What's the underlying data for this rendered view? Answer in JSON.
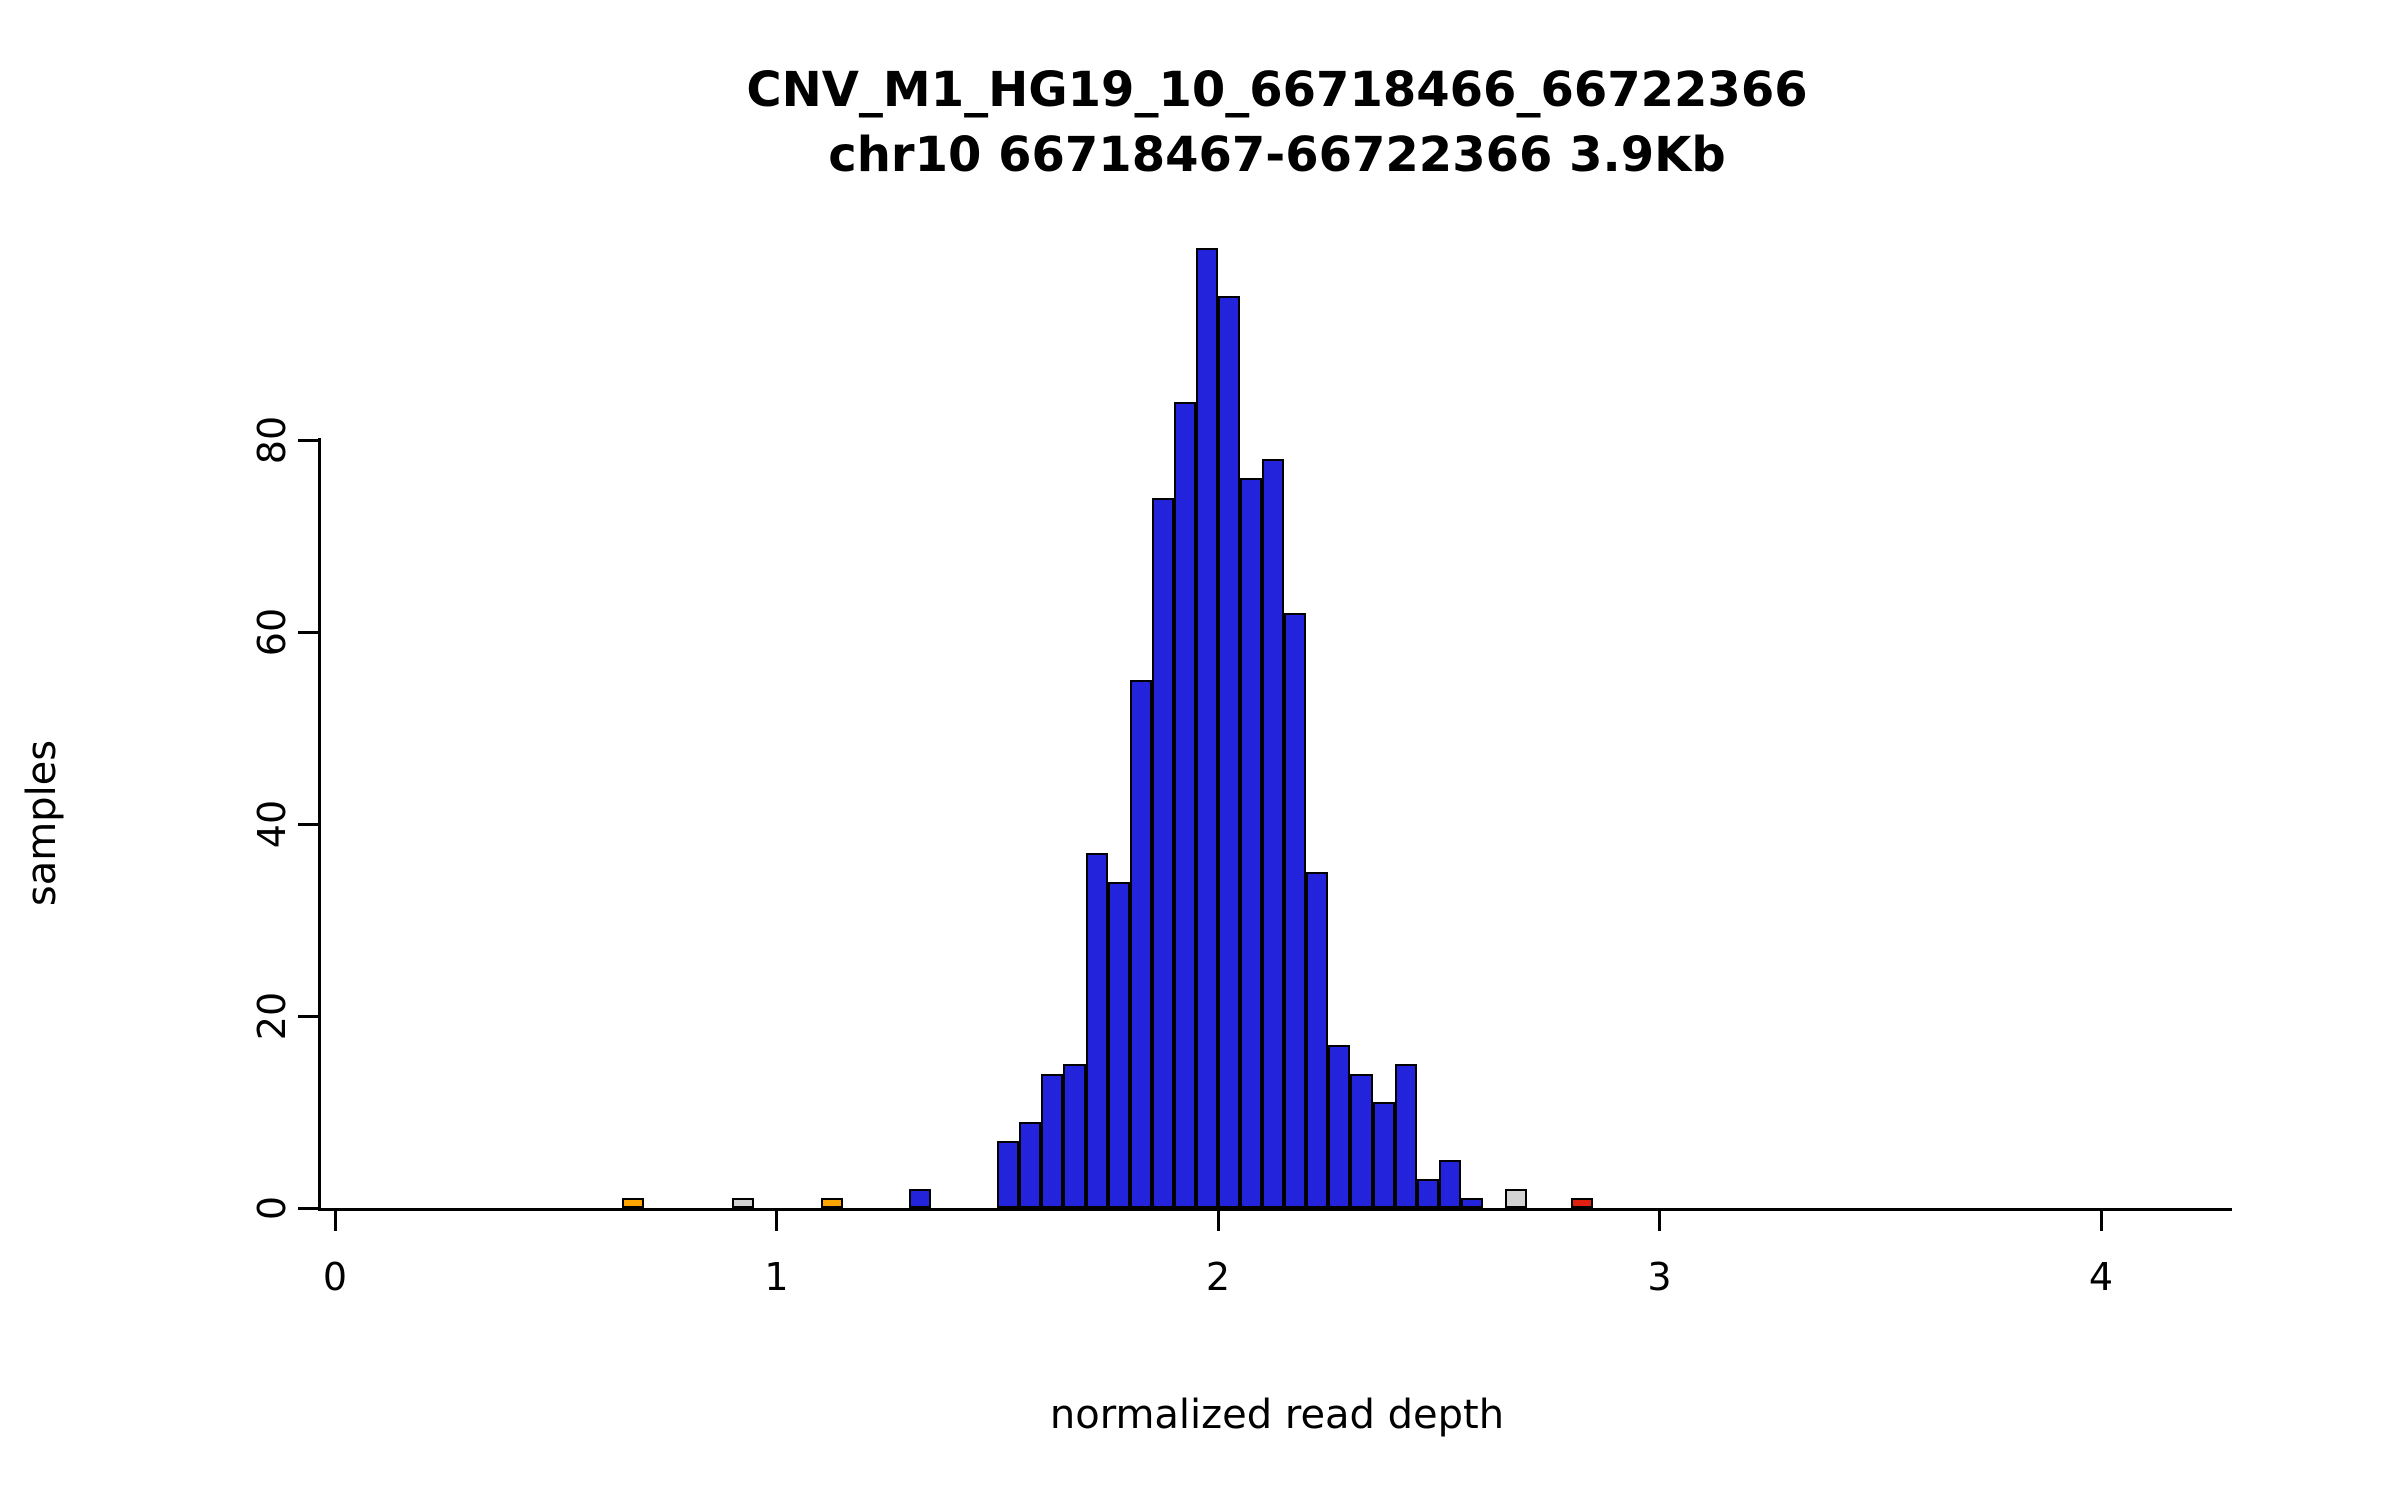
{
  "chart_data": {
    "type": "bar",
    "title": "CNV_M1_HG19_10_66718466_66722366",
    "subtitle": "chr10 66718467-66722366 3.9Kb",
    "xlabel": "normalized read depth",
    "ylabel": "samples",
    "x_ticks": [
      0,
      1,
      2,
      3,
      4
    ],
    "y_ticks": [
      0,
      20,
      40,
      60,
      80
    ],
    "xlim": [
      -0.03,
      4.3
    ],
    "ylim": [
      0,
      100
    ],
    "bin_width": 0.05,
    "grid": false,
    "legend": "none",
    "bars": [
      {
        "x": 0.65,
        "count": 1,
        "color": "orange"
      },
      {
        "x": 0.9,
        "count": 1,
        "color": "gray"
      },
      {
        "x": 1.1,
        "count": 1,
        "color": "orange"
      },
      {
        "x": 1.3,
        "count": 2,
        "color": "blue"
      },
      {
        "x": 1.5,
        "count": 7,
        "color": "blue"
      },
      {
        "x": 1.55,
        "count": 9,
        "color": "blue"
      },
      {
        "x": 1.6,
        "count": 14,
        "color": "blue"
      },
      {
        "x": 1.65,
        "count": 15,
        "color": "blue"
      },
      {
        "x": 1.7,
        "count": 37,
        "color": "blue"
      },
      {
        "x": 1.75,
        "count": 34,
        "color": "blue"
      },
      {
        "x": 1.8,
        "count": 55,
        "color": "blue"
      },
      {
        "x": 1.85,
        "count": 74,
        "color": "blue"
      },
      {
        "x": 1.9,
        "count": 84,
        "color": "blue"
      },
      {
        "x": 1.95,
        "count": 100,
        "color": "blue"
      },
      {
        "x": 2.0,
        "count": 95,
        "color": "blue"
      },
      {
        "x": 2.05,
        "count": 76,
        "color": "blue"
      },
      {
        "x": 2.1,
        "count": 78,
        "color": "blue"
      },
      {
        "x": 2.15,
        "count": 62,
        "color": "blue"
      },
      {
        "x": 2.2,
        "count": 35,
        "color": "blue"
      },
      {
        "x": 2.25,
        "count": 17,
        "color": "blue"
      },
      {
        "x": 2.3,
        "count": 14,
        "color": "blue"
      },
      {
        "x": 2.35,
        "count": 11,
        "color": "blue"
      },
      {
        "x": 2.4,
        "count": 15,
        "color": "blue"
      },
      {
        "x": 2.45,
        "count": 3,
        "color": "blue"
      },
      {
        "x": 2.5,
        "count": 5,
        "color": "blue"
      },
      {
        "x": 2.55,
        "count": 1,
        "color": "blue"
      },
      {
        "x": 2.65,
        "count": 2,
        "color": "gray"
      },
      {
        "x": 2.8,
        "count": 1,
        "color": "red"
      }
    ],
    "palette": {
      "blue": "#2323DB",
      "orange": "#FFA500",
      "gray": "#D3D3D3",
      "red": "#E02010",
      "bar_border": "#000000",
      "axis": "#000000",
      "background": "#FFFFFF"
    }
  }
}
